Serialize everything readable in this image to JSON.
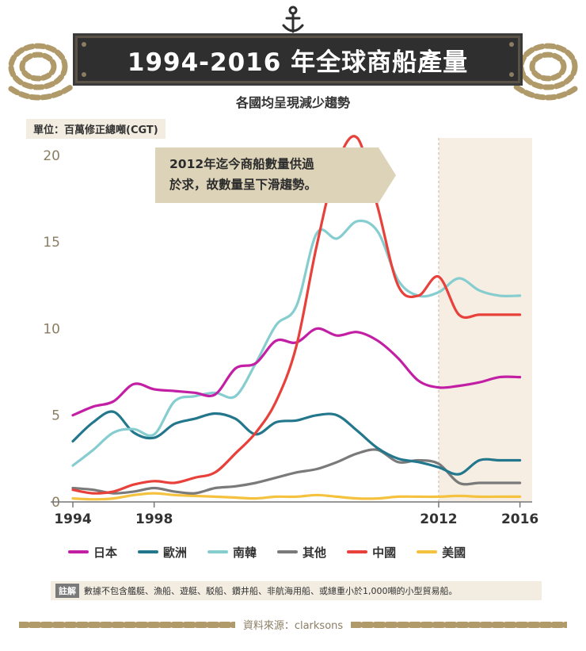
{
  "header": {
    "title": "1994-2016 年全球商船產量",
    "subtitle": "各國均呈現減少趨勢"
  },
  "unit_label": "單位：百萬修正總噸(CGT)",
  "callout": {
    "line1": "2012年迄今商船數量供過",
    "line2": "於求，故數量呈下滑趨勢。"
  },
  "note": {
    "tag": "註解",
    "text": "數據不包含艦艇、漁船、遊艇、駁船、鑽井船、非航海用船、或總重小於1,000噸的小型貿易船。"
  },
  "source": "資料來源：clarksons",
  "colors": {
    "japan": "#c21fa5",
    "europe": "#23778c",
    "korea": "#86cdd0",
    "other": "#7a7a7a",
    "china": "#e8403a",
    "usa": "#f5c23f",
    "highlight": "#f6eee3",
    "axis": "#999999",
    "tick_text": "#8b7d62"
  },
  "chart_data": {
    "type": "line",
    "title": "1994-2016 年全球商船產量",
    "subtitle": "各國均呈現減少趨勢",
    "ylabel": "單位：百萬修正總噸(CGT)",
    "xlabel": "",
    "xlim": [
      1994,
      2016.6
    ],
    "ylim": [
      0,
      21
    ],
    "xticks": [
      1994,
      1998,
      2012,
      2016
    ],
    "yticks": [
      0,
      5,
      10,
      15,
      20
    ],
    "highlight_range": [
      2012,
      2016.6
    ],
    "legend_position": "bottom",
    "x": [
      1994,
      1995,
      1996,
      1997,
      1998,
      1999,
      2000,
      2001,
      2002,
      2003,
      2004,
      2005,
      2006,
      2007,
      2008,
      2009,
      2010,
      2011,
      2012,
      2013,
      2014,
      2015,
      2016
    ],
    "series": [
      {
        "name": "日本",
        "color_key": "japan",
        "values": [
          5.0,
          5.5,
          5.8,
          6.8,
          6.5,
          6.4,
          6.3,
          6.2,
          7.7,
          8.0,
          9.3,
          9.2,
          10.0,
          9.6,
          9.8,
          9.3,
          8.3,
          7.0,
          6.6,
          6.7,
          6.9,
          7.2,
          7.2
        ]
      },
      {
        "name": "歐洲",
        "color_key": "europe",
        "values": [
          3.5,
          4.6,
          5.2,
          4.0,
          3.7,
          4.5,
          4.8,
          5.1,
          4.8,
          3.9,
          4.6,
          4.7,
          5.0,
          5.0,
          4.1,
          3.1,
          2.5,
          2.3,
          2.0,
          1.6,
          2.4,
          2.4,
          2.4
        ]
      },
      {
        "name": "南韓",
        "color_key": "korea",
        "values": [
          2.1,
          3.0,
          4.0,
          4.2,
          3.9,
          5.8,
          6.1,
          6.3,
          6.1,
          8.0,
          10.2,
          11.3,
          15.5,
          15.2,
          16.2,
          15.6,
          12.8,
          11.9,
          12.1,
          12.9,
          12.2,
          11.9,
          11.9
        ]
      },
      {
        "name": "其他",
        "color_key": "other",
        "values": [
          0.8,
          0.7,
          0.5,
          0.6,
          0.8,
          0.6,
          0.5,
          0.8,
          0.9,
          1.1,
          1.4,
          1.7,
          1.9,
          2.3,
          2.8,
          3.0,
          2.3,
          2.4,
          2.2,
          1.1,
          1.1,
          1.1,
          1.1
        ]
      },
      {
        "name": "中國",
        "color_key": "china",
        "values": [
          0.7,
          0.5,
          0.6,
          1.0,
          1.2,
          1.1,
          1.4,
          1.7,
          2.8,
          4.0,
          5.8,
          9.0,
          14.8,
          19.5,
          21.0,
          17.0,
          12.5,
          11.9,
          13.0,
          10.8,
          10.8,
          10.8,
          10.8
        ]
      },
      {
        "name": "美國",
        "color_key": "usa",
        "values": [
          0.2,
          0.15,
          0.2,
          0.4,
          0.5,
          0.4,
          0.35,
          0.3,
          0.25,
          0.2,
          0.3,
          0.3,
          0.4,
          0.3,
          0.2,
          0.2,
          0.3,
          0.3,
          0.3,
          0.35,
          0.3,
          0.3,
          0.3
        ]
      }
    ]
  }
}
